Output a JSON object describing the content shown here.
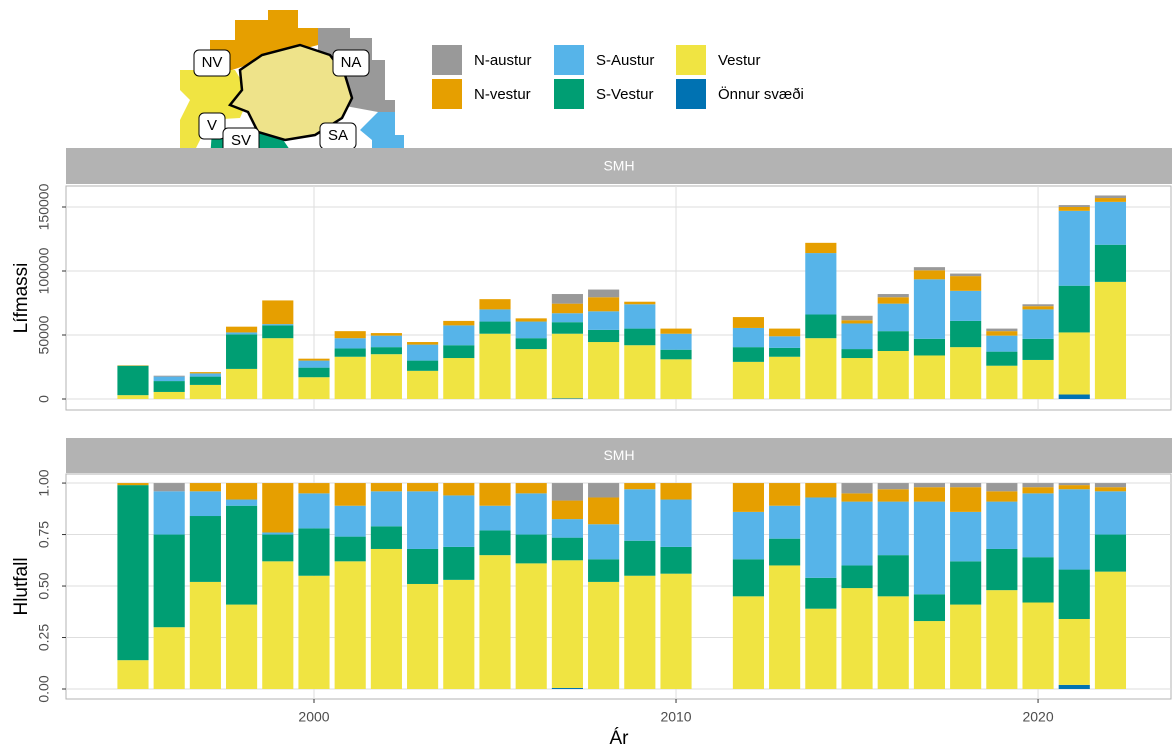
{
  "legend_order": [
    5,
    4,
    3,
    2,
    1,
    0
  ],
  "map_labels": [
    "NV",
    "NA",
    "V",
    "SV",
    "SA"
  ],
  "chart_data": [
    {
      "type": "bar",
      "stacked": true,
      "strip": "SMH",
      "ylabel": "Lífmassi",
      "x": [
        1995,
        1996,
        1997,
        1998,
        1999,
        2000,
        2001,
        2002,
        2003,
        2004,
        2005,
        2006,
        2007,
        2008,
        2009,
        2010,
        2012,
        2013,
        2014,
        2015,
        2016,
        2017,
        2018,
        2019,
        2020,
        2021,
        2022
      ],
      "xlim": [
        1993.15,
        2023.7
      ],
      "ylim": [
        -8600,
        166400
      ],
      "yticks": [
        0,
        50000,
        100000,
        150000
      ],
      "grid": true,
      "series": [
        {
          "name": "Önnur svæði",
          "color": "#0072B2",
          "values": [
            0,
            0,
            0,
            0,
            0,
            0,
            0,
            0,
            0,
            0,
            0,
            0,
            500,
            0,
            0,
            0,
            0,
            0,
            0,
            0,
            0,
            0,
            0,
            0,
            0,
            3500,
            0
          ]
        },
        {
          "name": "Vestur",
          "color": "#F0E442",
          "values": [
            3000,
            5500,
            11000,
            23500,
            47500,
            17000,
            33000,
            35000,
            22000,
            32000,
            51000,
            39000,
            50500,
            44500,
            42000,
            31000,
            29000,
            33000,
            47500,
            32000,
            37500,
            34000,
            40500,
            26000,
            30500,
            48500,
            91500
          ]
        },
        {
          "name": "S-Vestur",
          "color": "#009E73",
          "values": [
            23000,
            8500,
            6500,
            27000,
            10000,
            7500,
            6500,
            5500,
            8000,
            10000,
            9500,
            8500,
            9000,
            9500,
            13000,
            7500,
            11500,
            7000,
            18500,
            7000,
            15500,
            13000,
            20500,
            11000,
            16500,
            36500,
            29000
          ]
        },
        {
          "name": "S-Austur",
          "color": "#56B4E9",
          "values": [
            0,
            3500,
            2500,
            1500,
            1000,
            5500,
            8000,
            9000,
            12500,
            15500,
            9500,
            13000,
            7000,
            14500,
            19000,
            12500,
            15000,
            9000,
            48000,
            20000,
            21500,
            46500,
            23500,
            12500,
            23000,
            58500,
            33500
          ]
        },
        {
          "name": "N-vestur",
          "color": "#E69F00",
          "values": [
            300,
            0,
            1000,
            4500,
            18500,
            1500,
            5500,
            2000,
            2000,
            3500,
            8000,
            2500,
            7500,
            11000,
            2000,
            4000,
            8500,
            6000,
            8000,
            2500,
            5000,
            7000,
            11500,
            3500,
            2500,
            3000,
            3000
          ]
        },
        {
          "name": "N-austur",
          "color": "#999999",
          "values": [
            0,
            700,
            0,
            0,
            0,
            0,
            0,
            0,
            0,
            0,
            0,
            0,
            7500,
            6000,
            0,
            0,
            0,
            0,
            0,
            3500,
            2500,
            2500,
            2000,
            2000,
            1500,
            1500,
            2000
          ]
        }
      ]
    },
    {
      "type": "bar",
      "stacked": true,
      "strip": "SMH",
      "ylabel": "Hlutfall",
      "xlabel": "Ár",
      "x": [
        1995,
        1996,
        1997,
        1998,
        1999,
        2000,
        2001,
        2002,
        2003,
        2004,
        2005,
        2006,
        2007,
        2008,
        2009,
        2010,
        2012,
        2013,
        2014,
        2015,
        2016,
        2017,
        2018,
        2019,
        2020,
        2021,
        2022
      ],
      "xlim": [
        1993.15,
        2023.7
      ],
      "xticks": [
        2000,
        2010,
        2020
      ],
      "ylim": [
        -0.0485,
        1.044
      ],
      "yticks": [
        {
          "value": 0,
          "label": "0.00"
        },
        {
          "value": 0.25,
          "label": "0.25"
        },
        {
          "value": 0.5,
          "label": "0.50"
        },
        {
          "value": 0.75,
          "label": "0.75"
        },
        {
          "value": 1,
          "label": "1.00"
        }
      ],
      "grid": true,
      "series": [
        {
          "values": [
            0,
            0,
            0,
            0,
            0,
            0,
            0,
            0,
            0,
            0,
            0,
            0,
            0.005,
            0,
            0,
            0,
            0,
            0,
            0,
            0,
            0,
            0,
            0,
            0,
            0,
            0.02,
            0
          ]
        },
        {
          "values": [
            0.14,
            0.3,
            0.52,
            0.41,
            0.62,
            0.55,
            0.62,
            0.68,
            0.51,
            0.53,
            0.65,
            0.61,
            0.62,
            0.52,
            0.55,
            0.56,
            0.45,
            0.6,
            0.39,
            0.49,
            0.45,
            0.33,
            0.41,
            0.48,
            0.42,
            0.32,
            0.57
          ]
        },
        {
          "values": [
            0.85,
            0.45,
            0.32,
            0.48,
            0.13,
            0.23,
            0.12,
            0.11,
            0.17,
            0.16,
            0.12,
            0.14,
            0.11,
            0.11,
            0.17,
            0.13,
            0.18,
            0.13,
            0.15,
            0.11,
            0.2,
            0.13,
            0.21,
            0.2,
            0.22,
            0.24,
            0.18
          ]
        },
        {
          "values": [
            0,
            0.21,
            0.12,
            0.03,
            0.01,
            0.17,
            0.15,
            0.17,
            0.28,
            0.25,
            0.12,
            0.2,
            0.09,
            0.17,
            0.25,
            0.23,
            0.23,
            0.16,
            0.39,
            0.31,
            0.26,
            0.45,
            0.24,
            0.23,
            0.31,
            0.39,
            0.21
          ]
        },
        {
          "values": [
            0.01,
            0,
            0.04,
            0.08,
            0.24,
            0.05,
            0.11,
            0.04,
            0.04,
            0.06,
            0.11,
            0.05,
            0.09,
            0.13,
            0.03,
            0.08,
            0.14,
            0.11,
            0.07,
            0.04,
            0.06,
            0.07,
            0.12,
            0.05,
            0.03,
            0.02,
            0.02
          ]
        },
        {
          "values": [
            0,
            0.04,
            0,
            0,
            0,
            0,
            0,
            0,
            0,
            0,
            0,
            0,
            0.085,
            0.07,
            0,
            0,
            0,
            0,
            0,
            0.05,
            0.03,
            0.02,
            0.02,
            0.04,
            0.02,
            0.01,
            0.02
          ]
        }
      ]
    }
  ]
}
